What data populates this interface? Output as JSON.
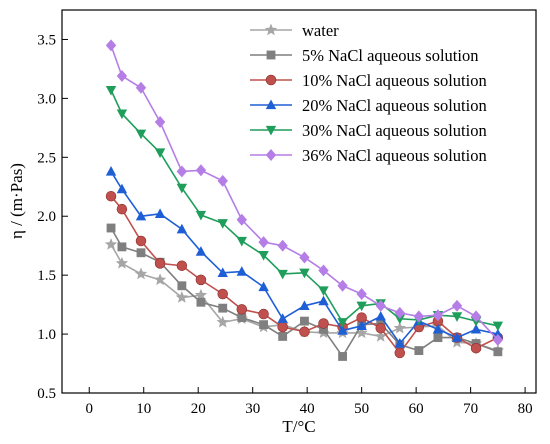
{
  "chart_data": {
    "type": "line",
    "xlabel": "T/°C",
    "ylabel": "η / (m·Pas)",
    "xlim": [
      -5,
      82
    ],
    "ylim": [
      0.5,
      3.75
    ],
    "xticks": [
      0,
      10,
      20,
      30,
      40,
      50,
      60,
      70,
      80
    ],
    "yticks": [
      0.5,
      1.0,
      1.5,
      2.0,
      2.5,
      3.0,
      3.5
    ],
    "xtick_labels": [
      "0",
      "10",
      "20",
      "30",
      "40",
      "50",
      "60",
      "70",
      "80"
    ],
    "ytick_labels": [
      "0.5",
      "1.0",
      "1.5",
      "2.0",
      "2.5",
      "3.0",
      "3.5"
    ],
    "grid": false,
    "legend_position": "top-right",
    "x": [
      4,
      6,
      9.5,
      13,
      17,
      20.5,
      24.5,
      28,
      32,
      35.5,
      39.5,
      43,
      46.5,
      50,
      53.5,
      57,
      60.5,
      64,
      67.5,
      71,
      75
    ],
    "series": [
      {
        "name": "water",
        "marker": "star",
        "color": "#a6a6a6",
        "values": [
          1.76,
          1.6,
          1.51,
          1.46,
          1.31,
          1.33,
          1.1,
          1.13,
          1.06,
          1.08,
          1.02,
          1.01,
          1.01,
          1.01,
          0.98,
          1.05,
          1.06,
          1.07,
          0.93,
          0.92,
          0.86
        ]
      },
      {
        "name": "5% NaCl aqueous solution",
        "marker": "square",
        "color": "#7f7f7f",
        "values": [
          1.9,
          1.74,
          1.69,
          1.61,
          1.41,
          1.27,
          1.22,
          1.14,
          1.08,
          0.98,
          1.11,
          1.04,
          0.81,
          1.08,
          1.09,
          0.91,
          0.86,
          0.97,
          0.97,
          0.92,
          0.85
        ]
      },
      {
        "name": "10% NaCl aqueous solution",
        "marker": "circle",
        "color": "#c0504d",
        "values": [
          2.17,
          2.06,
          1.79,
          1.6,
          1.58,
          1.46,
          1.34,
          1.21,
          1.17,
          1.06,
          1.02,
          1.09,
          1.06,
          1.14,
          1.05,
          0.84,
          1.06,
          1.11,
          0.97,
          0.88,
          0.97
        ]
      },
      {
        "name": "20% NaCl aqueous solution",
        "marker": "triangle-up",
        "color": "#1f5fd6",
        "values": [
          2.38,
          2.23,
          2.0,
          2.02,
          1.89,
          1.7,
          1.52,
          1.53,
          1.4,
          1.13,
          1.24,
          1.28,
          1.03,
          1.07,
          1.15,
          0.92,
          1.11,
          1.04,
          0.97,
          1.04,
          1.0
        ]
      },
      {
        "name": "30% NaCl aqueous solution",
        "marker": "triangle-down",
        "color": "#1e9e5a",
        "values": [
          3.07,
          2.87,
          2.7,
          2.54,
          2.24,
          2.01,
          1.94,
          1.79,
          1.67,
          1.51,
          1.52,
          1.37,
          1.1,
          1.24,
          1.26,
          1.13,
          1.12,
          1.16,
          1.15,
          1.11,
          1.07
        ]
      },
      {
        "name": "36% NaCl aqueous solution",
        "marker": "diamond",
        "color": "#b57ee6",
        "values": [
          3.45,
          3.19,
          3.09,
          2.8,
          2.38,
          2.39,
          2.3,
          1.97,
          1.78,
          1.75,
          1.65,
          1.54,
          1.41,
          1.34,
          1.24,
          1.18,
          1.15,
          1.16,
          1.24,
          1.15,
          0.95
        ]
      }
    ]
  }
}
